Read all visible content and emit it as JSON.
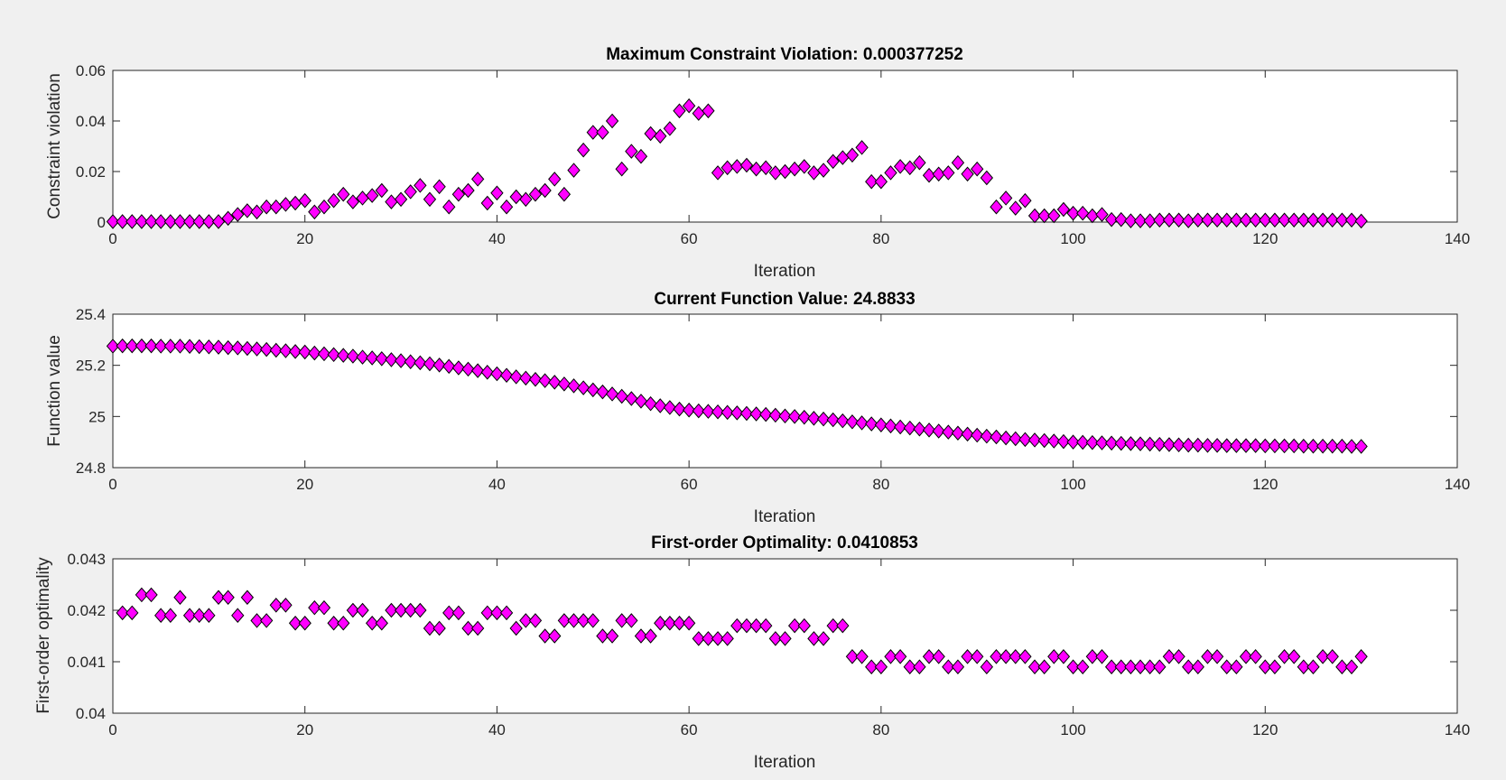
{
  "figure": {
    "background": "#f0f0f0",
    "marker_color": "#ff00ff",
    "marker_edge": "#000000"
  },
  "chart_data": [
    {
      "type": "scatter",
      "title": "Maximum Constraint Violation: 0.000377252",
      "xlabel": "Iteration",
      "ylabel": "Constraint violation",
      "xlim": [
        0,
        140
      ],
      "ylim": [
        0,
        0.06
      ],
      "xticks": [
        "0",
        "20",
        "40",
        "60",
        "80",
        "100",
        "120",
        "140"
      ],
      "xtick_values": [
        0,
        20,
        40,
        60,
        80,
        100,
        120,
        140
      ],
      "yticks": [
        "0",
        "0.02",
        "0.04",
        "0.06"
      ],
      "ytick_values": [
        0,
        0.02,
        0.04,
        0.06
      ],
      "grid": false,
      "marker": "diamond",
      "x_start": 0,
      "x_step": 1,
      "y": [
        0.0002,
        0.0002,
        0.0002,
        0.0002,
        0.0002,
        0.0002,
        0.0002,
        0.0002,
        0.0002,
        0.0002,
        0.0002,
        0.0002,
        0.0015,
        0.003,
        0.0045,
        0.004,
        0.006,
        0.006,
        0.007,
        0.0075,
        0.0085,
        0.004,
        0.006,
        0.0085,
        0.011,
        0.008,
        0.0095,
        0.0105,
        0.0125,
        0.008,
        0.009,
        0.012,
        0.0145,
        0.009,
        0.014,
        0.006,
        0.011,
        0.0125,
        0.017,
        0.0075,
        0.0115,
        0.006,
        0.01,
        0.009,
        0.011,
        0.0125,
        0.017,
        0.011,
        0.0205,
        0.0285,
        0.0355,
        0.0355,
        0.04,
        0.021,
        0.028,
        0.026,
        0.035,
        0.034,
        0.037,
        0.044,
        0.046,
        0.043,
        0.044,
        0.0195,
        0.0215,
        0.022,
        0.0225,
        0.021,
        0.0215,
        0.0195,
        0.02,
        0.021,
        0.022,
        0.0195,
        0.0205,
        0.024,
        0.0255,
        0.0265,
        0.0295,
        0.016,
        0.016,
        0.0195,
        0.022,
        0.0215,
        0.0235,
        0.0185,
        0.019,
        0.0195,
        0.0235,
        0.019,
        0.021,
        0.0175,
        0.006,
        0.0095,
        0.0055,
        0.0085,
        0.0025,
        0.0025,
        0.0025,
        0.005,
        0.0035,
        0.0035,
        0.0025,
        0.003,
        0.001,
        0.001,
        0.0005,
        0.0005,
        0.0005,
        0.0008,
        0.0008,
        0.0008,
        0.0005,
        0.0008,
        0.0008,
        0.0008,
        0.0008,
        0.0008,
        0.0008,
        0.0008,
        0.0008,
        0.0008,
        0.0008,
        0.0008,
        0.0008,
        0.0008,
        0.0008,
        0.0008,
        0.0008,
        0.0008,
        0.0004
      ]
    },
    {
      "type": "scatter",
      "title": "Current Function Value: 24.8833",
      "xlabel": "Iteration",
      "ylabel": "Function value",
      "xlim": [
        0,
        140
      ],
      "ylim": [
        24.8,
        25.4
      ],
      "xticks": [
        "0",
        "20",
        "40",
        "60",
        "80",
        "100",
        "120",
        "140"
      ],
      "xtick_values": [
        0,
        20,
        40,
        60,
        80,
        100,
        120,
        140
      ],
      "yticks": [
        "24.8",
        "25",
        "25.2",
        "25.4"
      ],
      "ytick_values": [
        24.8,
        25.0,
        25.2,
        25.4
      ],
      "grid": false,
      "marker": "diamond",
      "x_start": 0,
      "x_step": 1,
      "y": [
        25.275,
        25.276,
        25.276,
        25.276,
        25.276,
        25.275,
        25.275,
        25.275,
        25.274,
        25.273,
        25.272,
        25.271,
        25.269,
        25.268,
        25.266,
        25.264,
        25.262,
        25.259,
        25.257,
        25.254,
        25.252,
        25.248,
        25.245,
        25.242,
        25.239,
        25.236,
        25.232,
        25.229,
        25.226,
        25.222,
        25.218,
        25.214,
        25.21,
        25.206,
        25.201,
        25.196,
        25.19,
        25.185,
        25.179,
        25.173,
        25.167,
        25.161,
        25.155,
        25.15,
        25.145,
        25.14,
        25.134,
        25.127,
        25.12,
        25.112,
        25.104,
        25.096,
        25.088,
        25.079,
        25.07,
        25.06,
        25.05,
        25.042,
        25.035,
        25.029,
        25.025,
        25.022,
        25.02,
        25.018,
        25.016,
        25.014,
        25.012,
        25.01,
        25.008,
        25.005,
        25.002,
        25.0,
        24.997,
        24.993,
        24.99,
        24.987,
        24.983,
        24.979,
        24.975,
        24.971,
        24.967,
        24.963,
        24.959,
        24.955,
        24.951,
        24.947,
        24.943,
        24.939,
        24.935,
        24.931,
        24.927,
        24.923,
        24.92,
        24.916,
        24.913,
        24.91,
        24.908,
        24.906,
        24.904,
        24.902,
        24.9,
        24.899,
        24.898,
        24.897,
        24.896,
        24.895,
        24.894,
        24.893,
        24.892,
        24.891,
        24.89,
        24.889,
        24.888,
        24.888,
        24.887,
        24.887,
        24.886,
        24.886,
        24.886,
        24.886,
        24.885,
        24.885,
        24.885,
        24.885,
        24.884,
        24.884,
        24.884,
        24.884,
        24.884,
        24.883,
        24.883
      ]
    },
    {
      "type": "scatter",
      "title": "First-order Optimality: 0.0410853",
      "xlabel": "Iteration",
      "ylabel": "First-order optimality",
      "xlim": [
        0,
        140
      ],
      "ylim": [
        0.04,
        0.043
      ],
      "xticks": [
        "0",
        "20",
        "40",
        "60",
        "80",
        "100",
        "120",
        "140"
      ],
      "xtick_values": [
        0,
        20,
        40,
        60,
        80,
        100,
        120,
        140
      ],
      "yticks": [
        "0.04",
        "0.041",
        "0.042",
        "0.043"
      ],
      "ytick_values": [
        0.04,
        0.041,
        0.042,
        0.043
      ],
      "grid": false,
      "marker": "diamond",
      "x_start": 1,
      "x_step": 1,
      "y": [
        0.04195,
        0.04195,
        0.0423,
        0.0423,
        0.0419,
        0.0419,
        0.04225,
        0.0419,
        0.0419,
        0.0419,
        0.04225,
        0.04225,
        0.0419,
        0.04225,
        0.0418,
        0.0418,
        0.0421,
        0.0421,
        0.04175,
        0.04175,
        0.04205,
        0.04205,
        0.04175,
        0.04175,
        0.042,
        0.042,
        0.04175,
        0.04175,
        0.042,
        0.042,
        0.042,
        0.042,
        0.04165,
        0.04165,
        0.04195,
        0.04195,
        0.04165,
        0.04165,
        0.04195,
        0.04195,
        0.04195,
        0.04165,
        0.0418,
        0.0418,
        0.0415,
        0.0415,
        0.0418,
        0.0418,
        0.0418,
        0.0418,
        0.0415,
        0.0415,
        0.0418,
        0.0418,
        0.0415,
        0.0415,
        0.04175,
        0.04175,
        0.04175,
        0.04175,
        0.04145,
        0.04145,
        0.04145,
        0.04145,
        0.0417,
        0.0417,
        0.0417,
        0.0417,
        0.04145,
        0.04145,
        0.0417,
        0.0417,
        0.04145,
        0.04145,
        0.0417,
        0.0417,
        0.0411,
        0.0411,
        0.0409,
        0.0409,
        0.0411,
        0.0411,
        0.0409,
        0.0409,
        0.0411,
        0.0411,
        0.0409,
        0.0409,
        0.0411,
        0.0411,
        0.0409,
        0.0411,
        0.0411,
        0.0411,
        0.0411,
        0.0409,
        0.0409,
        0.0411,
        0.0411,
        0.0409,
        0.0409,
        0.0411,
        0.0411,
        0.0409,
        0.0409,
        0.0409,
        0.0409,
        0.0409,
        0.0409,
        0.0411,
        0.0411,
        0.0409,
        0.0409,
        0.0411,
        0.0411,
        0.0409,
        0.0409,
        0.0411,
        0.0411,
        0.0409,
        0.0409,
        0.0411,
        0.0411,
        0.0409,
        0.0409,
        0.0411,
        0.0411,
        0.0409,
        0.0409,
        0.0411
      ]
    }
  ]
}
